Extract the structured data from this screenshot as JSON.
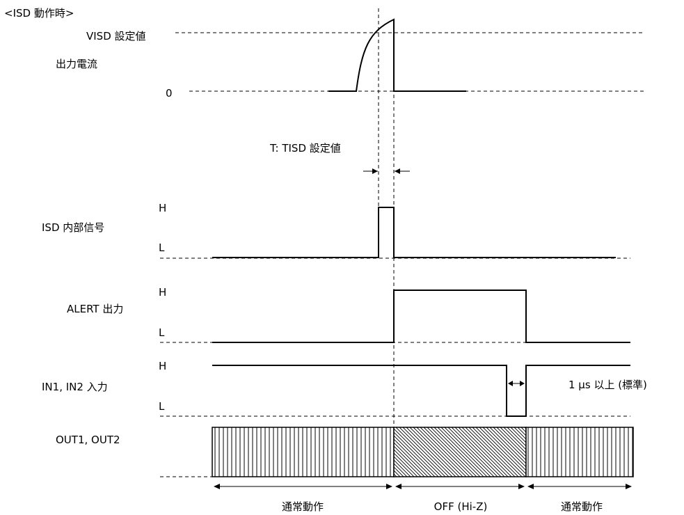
{
  "title": "<ISD 動作時>",
  "current": {
    "vset_label": "VISD 設定値",
    "name": "出力電流",
    "zero_label": "0"
  },
  "timing": {
    "tisd_label": "T: TISD 設定値"
  },
  "signals": {
    "isd": {
      "name": "ISD 内部信号",
      "high": "H",
      "low": "L"
    },
    "alert": {
      "name": "ALERT 出力",
      "high": "H",
      "low": "L"
    },
    "input": {
      "name": "IN1, IN2 入力",
      "high": "H",
      "low": "L",
      "pulse_note": "1 μs 以上 (標準)"
    },
    "output": {
      "name": "OUT1, OUT2"
    }
  },
  "phases": [
    "通常動作",
    "OFF (Hi-Z)",
    "通常動作"
  ]
}
